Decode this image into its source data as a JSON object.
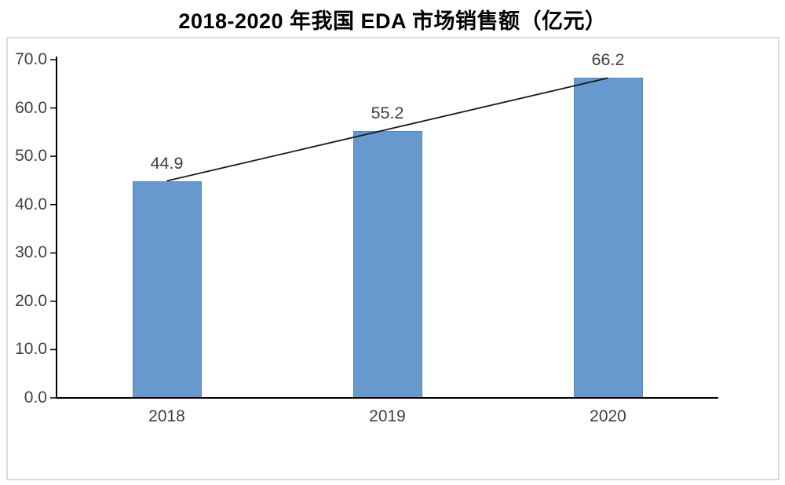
{
  "chart_data": {
    "type": "bar",
    "title": "2018-2020 年我国 EDA 市场销售额（亿元）",
    "categories": [
      "2018",
      "2019",
      "2020"
    ],
    "values": [
      44.9,
      55.2,
      66.2
    ],
    "data_labels": [
      "44.9",
      "55.2",
      "66.2"
    ],
    "xlabel": "",
    "ylabel": "",
    "ylim": [
      0,
      70
    ],
    "ytick_step": 10,
    "ytick_labels": [
      "0.0",
      "10.0",
      "20.0",
      "30.0",
      "40.0",
      "50.0",
      "60.0",
      "70.0"
    ],
    "grid": false,
    "legend": false,
    "annotations": [
      "straight trendline from 2018 bar top to 2020 bar top"
    ],
    "colors": {
      "bar_fill": "#6899CE",
      "bar_border": "#5586BE",
      "axis_line": "#000000",
      "trend_line": "#1a1a1a",
      "tick_text": "#404040",
      "frame_border": "#DCDCDC",
      "background": "#ffffff"
    }
  }
}
